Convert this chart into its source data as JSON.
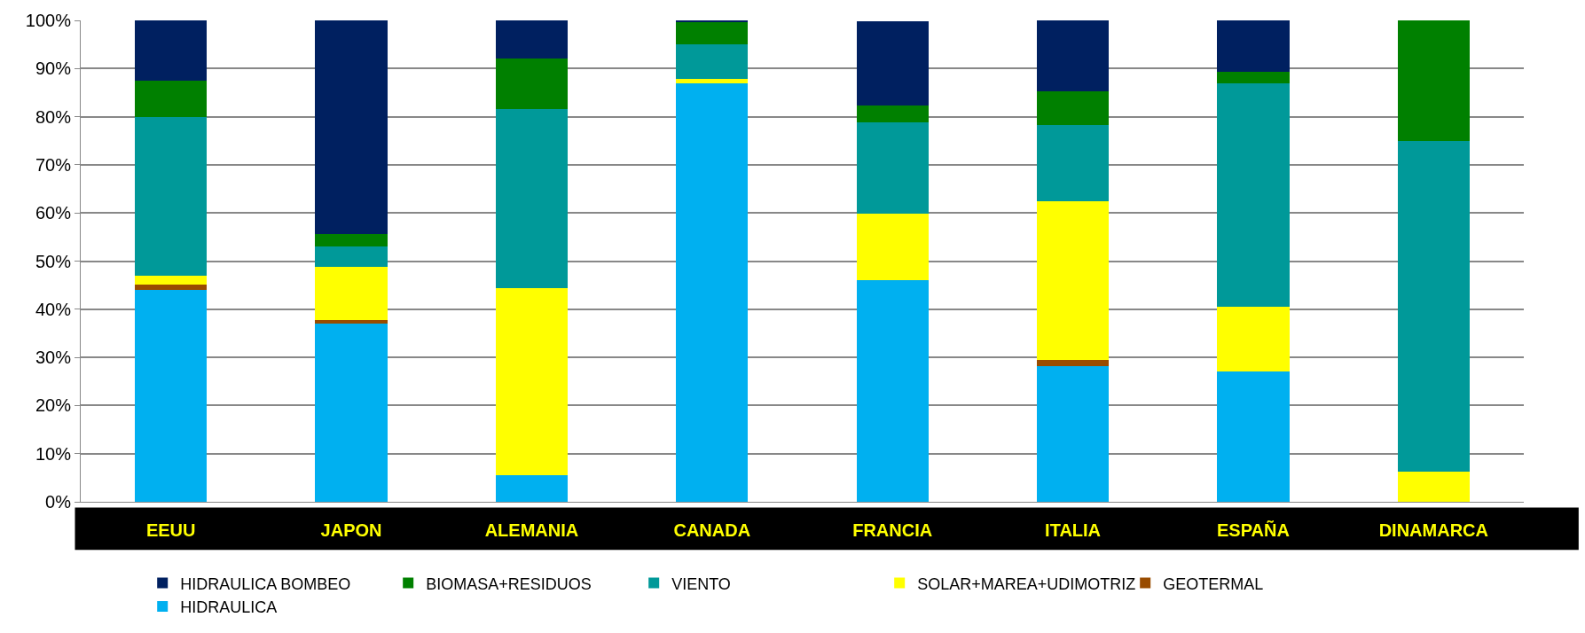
{
  "chart_data": {
    "type": "bar",
    "stacked": true,
    "categories": [
      "EEUU",
      "JAPON",
      "ALEMANIA",
      "CANADA",
      "FRANCIA",
      "ITALIA",
      "ESPAÑA",
      "DINAMARCA"
    ],
    "series": [
      {
        "name": "HIDRAULICA",
        "color": "#00b0f0",
        "values": [
          44,
          37,
          5.5,
          86.9,
          46.1,
          28.1,
          27,
          0
        ]
      },
      {
        "name": "GEOTERMAL",
        "color": "#994c00",
        "values": [
          1.2,
          0.8,
          0,
          0,
          0,
          1.4,
          0,
          0
        ]
      },
      {
        "name": "SOLAR+MAREA+UDIMOTRIZ",
        "color": "#ffff00",
        "values": [
          1.8,
          11,
          38.9,
          1,
          13.8,
          32.9,
          13.6,
          6.3
        ]
      },
      {
        "name": "VIENTO",
        "color": "#009999",
        "values": [
          33,
          4.2,
          37.2,
          7.1,
          18.9,
          15.8,
          46.4,
          68.7
        ]
      },
      {
        "name": "BIOMASA+RESIDUOS",
        "color": "#008000",
        "values": [
          7.5,
          2.6,
          10.4,
          4.7,
          3.6,
          7,
          2.4,
          25
        ]
      },
      {
        "name": "HIDRAULICA BOMBEO",
        "color": "#002060",
        "values": [
          12.5,
          44.4,
          8,
          0.3,
          17.4,
          14.8,
          10.6,
          0
        ]
      }
    ],
    "ylim": [
      0,
      100
    ],
    "yticks": [
      {
        "value": 0,
        "label": "0%"
      },
      {
        "value": 10,
        "label": "10%"
      },
      {
        "value": 20,
        "label": "20%"
      },
      {
        "value": 30,
        "label": "30%"
      },
      {
        "value": 40,
        "label": "40%"
      },
      {
        "value": 50,
        "label": "50%"
      },
      {
        "value": 60,
        "label": "60%"
      },
      {
        "value": 70,
        "label": "70%"
      },
      {
        "value": 80,
        "label": "80%"
      },
      {
        "value": 90,
        "label": "90%"
      },
      {
        "value": 100,
        "label": "100%"
      }
    ],
    "grid": "y",
    "legend": "bottom"
  }
}
